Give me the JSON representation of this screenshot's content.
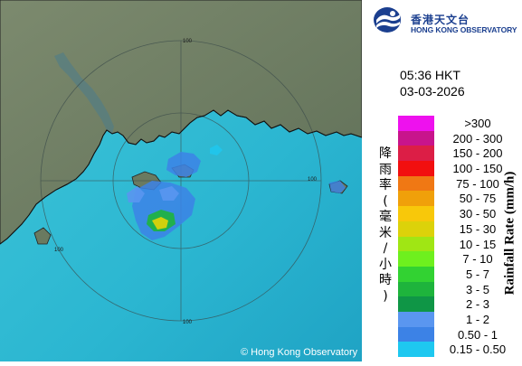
{
  "logo": {
    "name_zh": "香港天文台",
    "name_en": "HONG KONG OBSERVATORY"
  },
  "timestamp": {
    "time": "05:36 HKT",
    "date": "03-03-2026"
  },
  "legend": {
    "title_zh": "降雨率(毫米/小時)",
    "title_en": "Rainfall Rate (mm/h)",
    "items": [
      {
        "label": ">300",
        "color": "#ee11ee"
      },
      {
        "label": "200 - 300",
        "color": "#c8148c"
      },
      {
        "label": "150 - 200",
        "color": "#dc1e46"
      },
      {
        "label": "100 - 150",
        "color": "#f20f0f"
      },
      {
        "label": "75 - 100",
        "color": "#f07814"
      },
      {
        "label": "50 - 75",
        "color": "#f0a00a"
      },
      {
        "label": "30 - 50",
        "color": "#f8c80a"
      },
      {
        "label": "15 - 30",
        "color": "#dcd20a"
      },
      {
        "label": "10 - 15",
        "color": "#a0e614"
      },
      {
        "label": "7 - 10",
        "color": "#6ef01e"
      },
      {
        "label": "5 - 7",
        "color": "#32d232"
      },
      {
        "label": "3 - 5",
        "color": "#1eb43c"
      },
      {
        "label": "2 - 3",
        "color": "#0f9646"
      },
      {
        "label": "1 - 2",
        "color": "#5a96f0"
      },
      {
        "label": "0.50 - 1",
        "color": "#3c82e6"
      },
      {
        "label": "0.15 - 0.50",
        "color": "#1ec8f0"
      }
    ]
  },
  "map": {
    "range_ring_labels": [
      "100",
      "100",
      "100",
      "100"
    ],
    "credit": "© Hong Kong Observatory"
  }
}
